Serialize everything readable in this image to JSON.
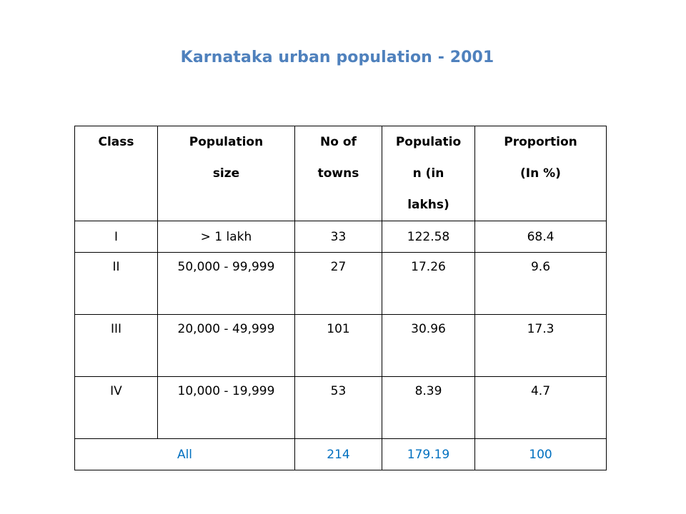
{
  "title": "Karnataka urban population - 2001",
  "table": {
    "headers": [
      {
        "lines": [
          "Class"
        ]
      },
      {
        "lines": [
          "Population",
          "size"
        ]
      },
      {
        "lines": [
          "No of",
          "towns"
        ]
      },
      {
        "lines": [
          "Populatio",
          "n (in",
          "lakhs)"
        ]
      },
      {
        "lines": [
          "Proportion",
          "(In %)"
        ]
      }
    ],
    "rows": [
      [
        "I",
        "> 1 lakh",
        "33",
        "122.58",
        "68.4"
      ],
      [
        "II",
        "50,000 - 99,999",
        "27",
        "17.26",
        "9.6"
      ],
      [
        "III",
        "20,000 - 49,999",
        "101",
        "30.96",
        "17.3"
      ],
      [
        "IV",
        "10,000 - 19,999",
        "53",
        "8.39",
        "4.7"
      ]
    ],
    "total": {
      "label": "All",
      "towns": "214",
      "population": "179.19",
      "proportion": "100"
    }
  },
  "colors": {
    "title": "#4f81bd",
    "total_row_text": "#0070c0",
    "border": "#000000"
  }
}
